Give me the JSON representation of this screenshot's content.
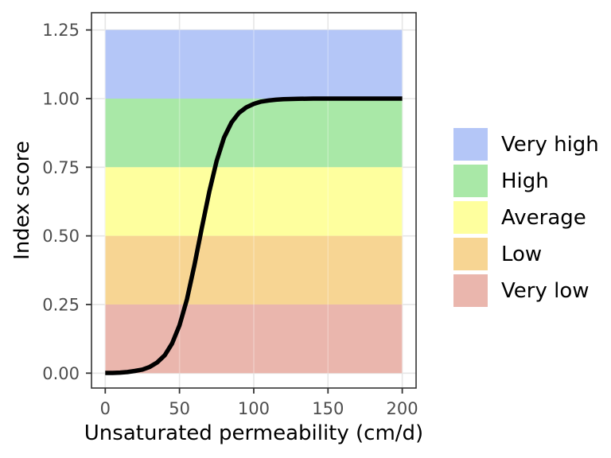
{
  "chart_data": {
    "type": "line",
    "title": "",
    "xlabel": "Unsaturated permeability (cm/d)",
    "ylabel": "Index score",
    "xlim": [
      0,
      200
    ],
    "ylim": [
      0,
      1.25
    ],
    "grid": "major",
    "legend_position": "right",
    "x_ticks": {
      "values": [
        0,
        50,
        100,
        150,
        200
      ],
      "labels": [
        "0",
        "50",
        "100",
        "150",
        "200"
      ]
    },
    "y_ticks": {
      "values": [
        0,
        0.25,
        0.5,
        0.75,
        1.0,
        1.25
      ],
      "labels": [
        "0.00",
        "0.25",
        "0.50",
        "0.75",
        "1.00",
        "1.25"
      ]
    },
    "bands": [
      {
        "label": "Very high",
        "from": 1.0,
        "to": 1.25,
        "color": "#b4c6f7"
      },
      {
        "label": "High",
        "from": 0.75,
        "to": 1.0,
        "color": "#a9e8a7"
      },
      {
        "label": "Average",
        "from": 0.5,
        "to": 0.75,
        "color": "#feff9e"
      },
      {
        "label": "Low",
        "from": 0.25,
        "to": 0.5,
        "color": "#f7d593"
      },
      {
        "label": "Very low",
        "from": 0.0,
        "to": 0.25,
        "color": "#eab6ad"
      }
    ],
    "series": [
      {
        "name": "index-score-curve",
        "color": "#000000",
        "x": [
          0,
          5,
          10,
          15,
          20,
          25,
          30,
          35,
          40,
          45,
          50,
          55,
          60,
          65,
          70,
          75,
          80,
          85,
          90,
          95,
          100,
          105,
          110,
          115,
          120,
          130,
          140,
          150,
          160,
          170,
          180,
          190,
          200
        ],
        "y": [
          0.001,
          0.001,
          0.002,
          0.004,
          0.008,
          0.013,
          0.023,
          0.039,
          0.065,
          0.108,
          0.174,
          0.269,
          0.392,
          0.528,
          0.66,
          0.773,
          0.858,
          0.913,
          0.948,
          0.968,
          0.981,
          0.989,
          0.993,
          0.996,
          0.998,
          0.999,
          1.0,
          1.0,
          1.0,
          1.0,
          1.0,
          1.0,
          1.0
        ]
      }
    ]
  },
  "legend": {
    "items": [
      {
        "label": "Very high",
        "color": "#b4c6f7"
      },
      {
        "label": "High",
        "color": "#a9e8a7"
      },
      {
        "label": "Average",
        "color": "#feff9e"
      },
      {
        "label": "Low",
        "color": "#f7d593"
      },
      {
        "label": "Very low",
        "color": "#eab6ad"
      }
    ]
  },
  "colors": {
    "panel_border": "#333333",
    "grid": "#e6e6e6",
    "grid_over_band": "rgba(255,255,255,0.28)",
    "tick": "#333333",
    "tick_label": "#4d4d4d",
    "axis_title": "#000000",
    "curve": "#000000"
  }
}
